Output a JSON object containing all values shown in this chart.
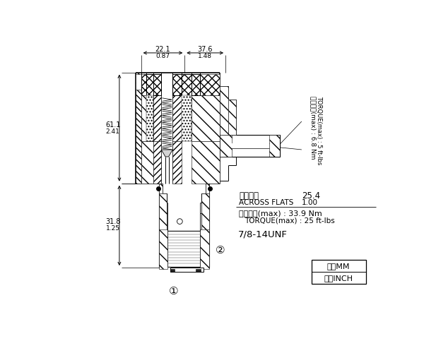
{
  "bg_color": "#ffffff",
  "lc": "#000000",
  "ann": {
    "tl_mm": "22.1",
    "tl_in": "0.87",
    "tr_mm": "37.6",
    "tr_in": "1.48",
    "ll_mm": "61.1",
    "ll_in": "2.41",
    "lb_mm": "31.8",
    "lb_in": "1.25",
    "af_cn": "對邊寬度",
    "af_en": "ACROSS FLATS",
    "af_mm": "25.4",
    "af_in": "1.00",
    "tq_big_cn": "安裝扭矩(max) : 33.9 Nm",
    "tq_big_en": "TORQUE(max) : 25 ft-lbs",
    "tq_sm_cn": "安裝扭矩(max) : 6.8 Nm",
    "tq_sm_en": "TORQUE(max) : 5 ft-lbs",
    "thread": "7/8-14UNF",
    "u1cn": "毫米",
    "u1en": "MM",
    "u2cn": "英寸",
    "u2en": "INCH",
    "lbl1": "①",
    "lbl2": "②"
  },
  "figsize": [
    6.0,
    4.83
  ],
  "dpi": 100
}
